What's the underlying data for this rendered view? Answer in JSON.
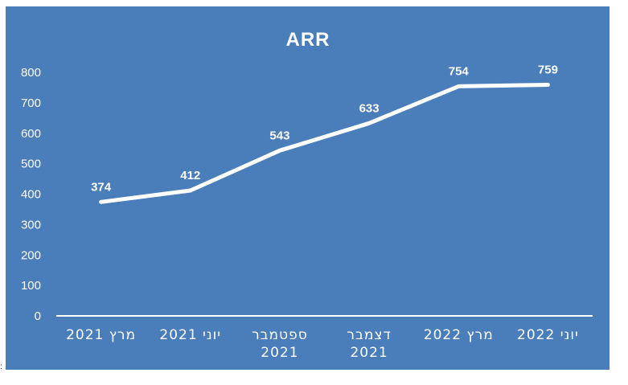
{
  "colors": {
    "background": "#4a7ebb",
    "line": "#ffffff",
    "text": "#ffffff"
  },
  "chart_data": {
    "type": "line",
    "title": "ARR",
    "categories": [
      [
        "מרץ 2021"
      ],
      [
        "יוני 2021"
      ],
      [
        "ספטמבר",
        "2021"
      ],
      [
        "דצמבר",
        "2021"
      ],
      [
        "מרץ 2022"
      ],
      [
        "יוני 2022"
      ]
    ],
    "series": [
      {
        "values": [
          374,
          412,
          543,
          633,
          754,
          759
        ]
      }
    ],
    "ylim": [
      0,
      800
    ],
    "yticks": [
      0,
      100,
      200,
      300,
      400,
      500,
      600,
      700,
      800
    ],
    "grid": false,
    "drop_lines": true,
    "data_labels": true,
    "legend": "none"
  },
  "corner_mark": ":"
}
